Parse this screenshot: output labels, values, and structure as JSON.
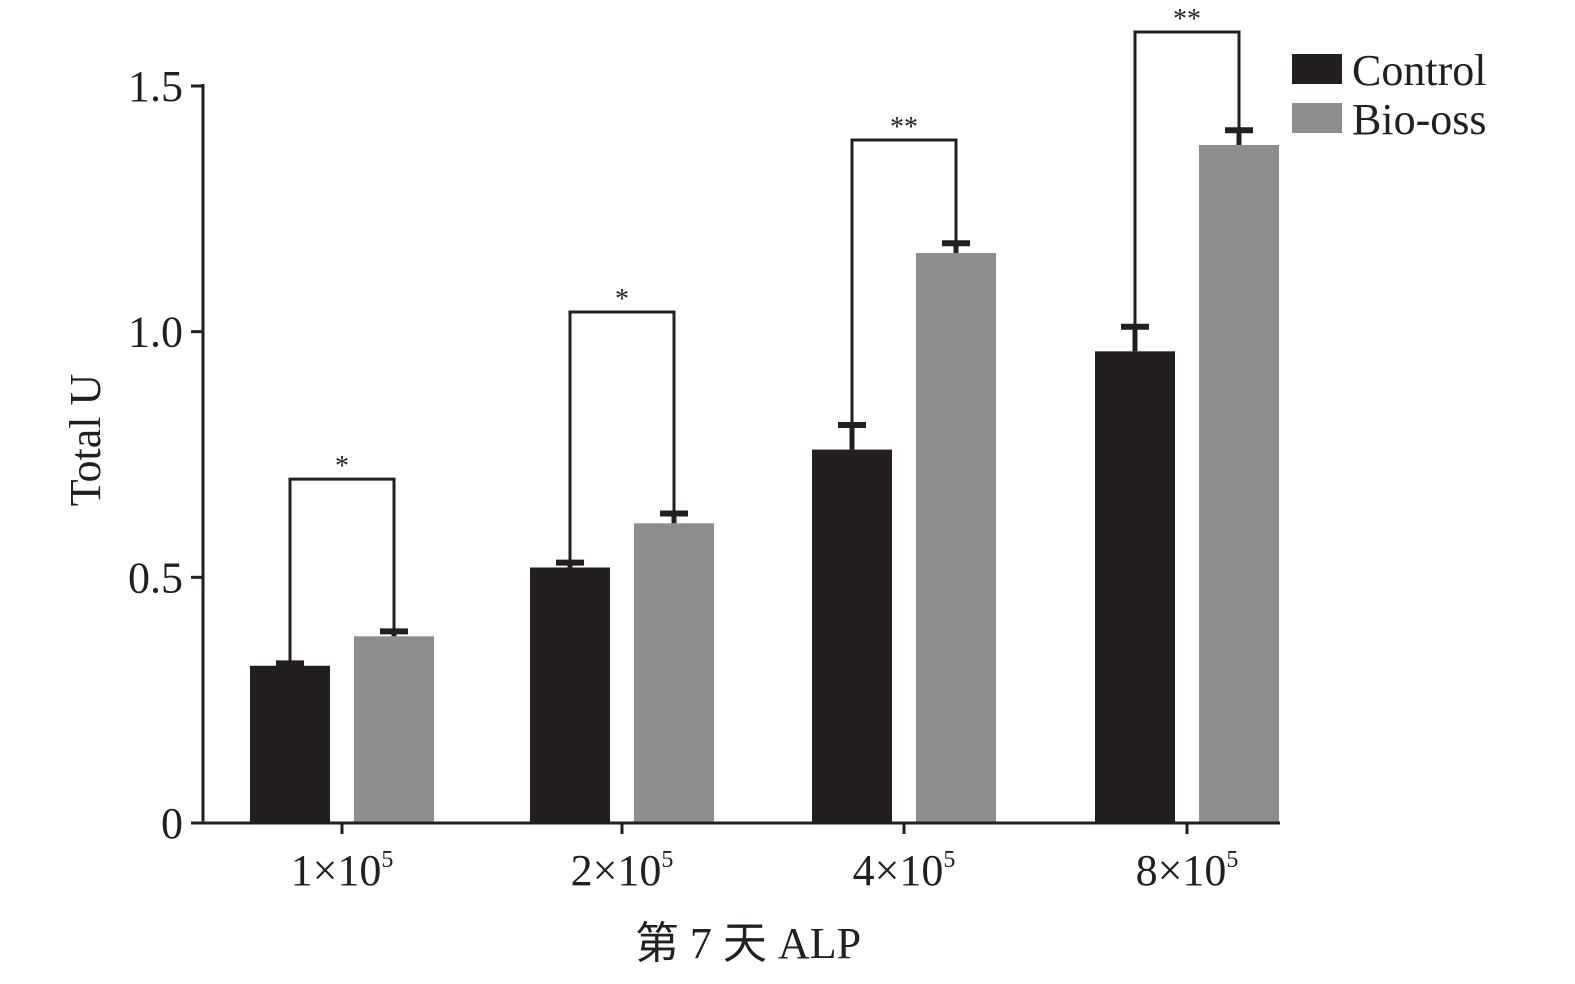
{
  "chart_data": {
    "type": "bar",
    "title": "",
    "xlabel": "第 7 天 ALP",
    "ylabel": "Total U",
    "ylim": [
      0,
      1.5
    ],
    "yticks": [
      {
        "value": 0,
        "label": "0"
      },
      {
        "value": 0.5,
        "label": "0.5"
      },
      {
        "value": 1.0,
        "label": "1.0"
      },
      {
        "value": 1.5,
        "label": "1.5"
      }
    ],
    "categories": [
      {
        "base": "1×10",
        "exp": "5"
      },
      {
        "base": "2×10",
        "exp": "5"
      },
      {
        "base": "4×10",
        "exp": "5"
      },
      {
        "base": "8×10",
        "exp": "5"
      }
    ],
    "series": [
      {
        "name": "Control",
        "color": "#231f20",
        "values": [
          0.32,
          0.52,
          0.76,
          0.96
        ],
        "errors": [
          0.005,
          0.01,
          0.05,
          0.05
        ]
      },
      {
        "name": "Bio-oss",
        "color": "#8e8d8d",
        "values": [
          0.38,
          0.61,
          1.16,
          1.38
        ],
        "errors": [
          0.01,
          0.02,
          0.02,
          0.03
        ]
      }
    ],
    "significance": [
      {
        "label": "*",
        "level": 0.7
      },
      {
        "label": "*",
        "level": 1.04
      },
      {
        "label": "**",
        "level": 1.39
      },
      {
        "label": "**",
        "level": 1.61
      }
    ],
    "legend_position": "top-right",
    "grid": false
  }
}
